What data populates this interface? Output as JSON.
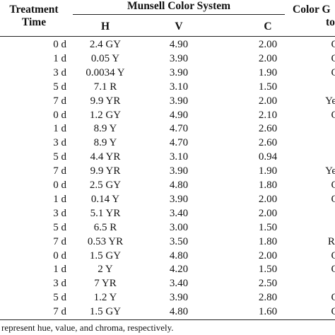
{
  "table": {
    "headers": {
      "time_line1": "Treatment",
      "time_line2": "Time",
      "munsell": "Munsell Color System",
      "h": "H",
      "v": "V",
      "c": "C",
      "group_line1": "Color G",
      "group_line2": "to"
    },
    "rows": [
      {
        "time": "0 d",
        "h": "2.4 GY",
        "v": "4.90",
        "c": "2.00",
        "g": "Ol"
      },
      {
        "time": "1 d",
        "h": "0.05 Y",
        "v": "3.90",
        "c": "2.00",
        "g": "Ol"
      },
      {
        "time": "3 d",
        "h": "0.0034 Y",
        "v": "3.90",
        "c": "1.90",
        "g": "Ol"
      },
      {
        "time": "5 d",
        "h": "7.1 R",
        "v": "3.10",
        "c": "1.50",
        "g": ""
      },
      {
        "time": "7 d",
        "h": "9.9 YR",
        "v": "3.90",
        "c": "2.00",
        "g": "Yello"
      },
      {
        "time": "0 d",
        "h": "1.2 GY",
        "v": "4.90",
        "c": "2.10",
        "g": "Ol"
      },
      {
        "time": "1 d",
        "h": "8.9 Y",
        "v": "4.70",
        "c": "2.60",
        "g": ""
      },
      {
        "time": "3 d",
        "h": "8.9 Y",
        "v": "4.70",
        "c": "2.60",
        "g": ""
      },
      {
        "time": "5 d",
        "h": "4.4 YR",
        "v": "3.10",
        "c": "0.94",
        "g": ""
      },
      {
        "time": "7 d",
        "h": "9.9 YR",
        "v": "3.90",
        "c": "1.90",
        "g": "Yello"
      },
      {
        "time": "0 d",
        "h": "2.5 GY",
        "v": "4.80",
        "c": "1.80",
        "g": "Ol"
      },
      {
        "time": "1 d",
        "h": "0.14 Y",
        "v": "3.90",
        "c": "2.00",
        "g": "Ol"
      },
      {
        "time": "3 d",
        "h": "5.1 YR",
        "v": "3.40",
        "c": "2.00",
        "g": ""
      },
      {
        "time": "5 d",
        "h": "6.5 R",
        "v": "3.00",
        "c": "1.50",
        "g": ""
      },
      {
        "time": "7 d",
        "h": "0.53 YR",
        "v": "3.50",
        "c": "1.80",
        "g": "Red"
      },
      {
        "time": "0 d",
        "h": "1.5 GY",
        "v": "4.80",
        "c": "2.00",
        "g": "Ol"
      },
      {
        "time": "1 d",
        "h": "2 Y",
        "v": "4.20",
        "c": "1.50",
        "g": "Ol"
      },
      {
        "time": "3 d",
        "h": "7 YR",
        "v": "3.40",
        "c": "2.50",
        "g": ""
      },
      {
        "time": "5 d",
        "h": "1.2 Y",
        "v": "3.90",
        "c": "2.80",
        "g": "Ol"
      },
      {
        "time": "7 d",
        "h": "1.5 GY",
        "v": "4.80",
        "c": "1.60",
        "g": "Ol"
      }
    ],
    "footnote": "represent hue, value, and chroma, respectively."
  }
}
